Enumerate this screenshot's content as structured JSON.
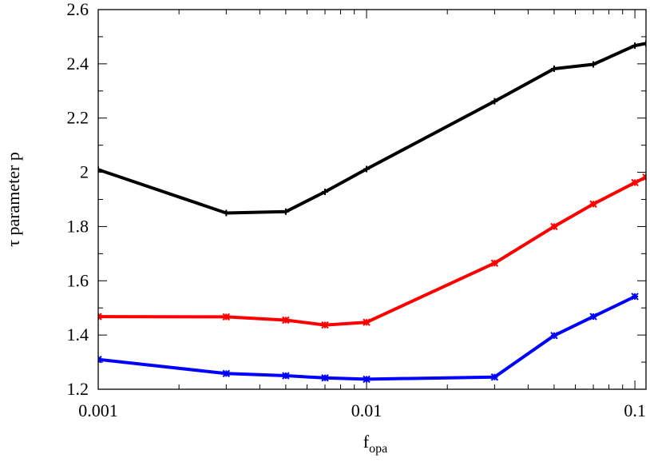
{
  "chart_data": {
    "type": "line",
    "title": "",
    "xlabel": "f",
    "xlabel_sub": "opa",
    "ylabel": "τ  parameter p",
    "xscale": "log",
    "xlim": [
      0.001,
      0.11
    ],
    "ylim": [
      1.2,
      2.6
    ],
    "x_ticks": [
      0.001,
      0.01,
      0.1
    ],
    "x_tick_labels": [
      "0.001",
      "0.01",
      "0.1"
    ],
    "y_ticks": [
      1.2,
      1.4,
      1.6,
      1.8,
      2.0,
      2.2,
      2.4,
      2.6
    ],
    "y_tick_labels": [
      "1.2",
      "1.4",
      "1.6",
      "1.8",
      "2",
      "2.2",
      "2.4",
      "2.6"
    ],
    "grid": false,
    "legend": "none",
    "series": [
      {
        "color": "#000000",
        "marker": "plus",
        "points": [
          [
            0.001,
            2.01
          ],
          [
            0.003,
            1.85
          ],
          [
            0.005,
            1.855
          ],
          [
            0.007,
            1.928
          ],
          [
            0.01,
            2.012
          ],
          [
            0.03,
            2.262
          ],
          [
            0.05,
            2.382
          ],
          [
            0.07,
            2.398
          ],
          [
            0.1,
            2.467
          ],
          [
            0.11,
            2.475
          ]
        ]
      },
      {
        "color": "#ff0000",
        "marker": "star",
        "points": [
          [
            0.001,
            1.468
          ],
          [
            0.003,
            1.467
          ],
          [
            0.005,
            1.455
          ],
          [
            0.007,
            1.437
          ],
          [
            0.01,
            1.447
          ],
          [
            0.03,
            1.665
          ],
          [
            0.05,
            1.8
          ],
          [
            0.07,
            1.883
          ],
          [
            0.1,
            1.962
          ],
          [
            0.11,
            1.982
          ]
        ]
      },
      {
        "color": "#0000ff",
        "marker": "star",
        "points": [
          [
            0.001,
            1.31
          ],
          [
            0.003,
            1.258
          ],
          [
            0.005,
            1.25
          ],
          [
            0.007,
            1.242
          ],
          [
            0.01,
            1.237
          ],
          [
            0.03,
            1.245
          ],
          [
            0.05,
            1.398
          ],
          [
            0.07,
            1.468
          ],
          [
            0.1,
            1.542
          ]
        ]
      }
    ]
  }
}
